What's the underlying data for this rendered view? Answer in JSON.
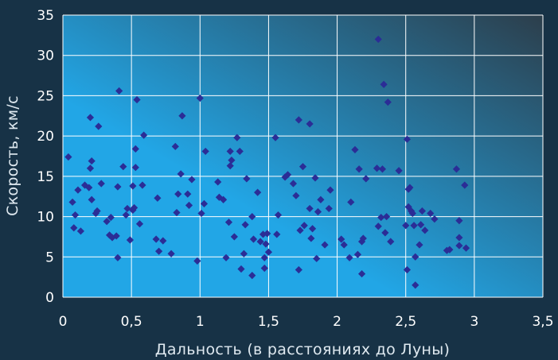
{
  "colors": {
    "page_background": "#173246",
    "plot_gradient_start": "#22a6e6",
    "plot_gradient_end": "#2c3e4b",
    "grid": "#ffffff",
    "marker": "#2b2d96",
    "text": "#ffffff"
  },
  "chart_data": {
    "type": "scatter",
    "title": "",
    "xlabel": "Дальность (в расстояниях до Луны)",
    "ylabel": "Скорость, км/с",
    "xlim": [
      0,
      3.5
    ],
    "ylim": [
      0,
      35
    ],
    "grid": true,
    "legend": "none",
    "marker": "diamond",
    "x_ticks": [
      "0",
      "0,5",
      "1",
      "1,5",
      "2",
      "2,5",
      "3",
      "3,5"
    ],
    "y_ticks": [
      "0",
      "5",
      "10",
      "15",
      "20",
      "25",
      "30",
      "35"
    ],
    "points": [
      [
        0.04,
        17.4
      ],
      [
        0.07,
        11.8
      ],
      [
        0.08,
        8.6
      ],
      [
        0.09,
        10.2
      ],
      [
        0.11,
        13.3
      ],
      [
        0.13,
        8.2
      ],
      [
        0.16,
        13.9
      ],
      [
        0.19,
        13.6
      ],
      [
        0.2,
        22.3
      ],
      [
        0.2,
        16.0
      ],
      [
        0.21,
        16.9
      ],
      [
        0.21,
        12.1
      ],
      [
        0.24,
        10.4
      ],
      [
        0.25,
        10.7
      ],
      [
        0.26,
        21.2
      ],
      [
        0.28,
        14.1
      ],
      [
        0.32,
        9.4
      ],
      [
        0.34,
        7.7
      ],
      [
        0.35,
        9.9
      ],
      [
        0.36,
        7.4
      ],
      [
        0.39,
        7.6
      ],
      [
        0.4,
        13.7
      ],
      [
        0.4,
        4.9
      ],
      [
        0.41,
        25.6
      ],
      [
        0.44,
        16.2
      ],
      [
        0.46,
        10.2
      ],
      [
        0.47,
        11.0
      ],
      [
        0.49,
        7.1
      ],
      [
        0.51,
        10.8
      ],
      [
        0.51,
        13.8
      ],
      [
        0.52,
        11.1
      ],
      [
        0.53,
        16.1
      ],
      [
        0.53,
        18.4
      ],
      [
        0.54,
        24.5
      ],
      [
        0.56,
        9.1
      ],
      [
        0.58,
        13.9
      ],
      [
        0.59,
        20.1
      ],
      [
        0.68,
        7.2
      ],
      [
        0.69,
        12.3
      ],
      [
        0.7,
        5.7
      ],
      [
        0.73,
        7.0
      ],
      [
        0.79,
        5.4
      ],
      [
        0.82,
        18.7
      ],
      [
        0.83,
        10.5
      ],
      [
        0.84,
        12.8
      ],
      [
        0.86,
        15.3
      ],
      [
        0.87,
        22.5
      ],
      [
        0.91,
        12.8
      ],
      [
        0.92,
        11.4
      ],
      [
        0.94,
        14.6
      ],
      [
        0.98,
        4.5
      ],
      [
        1.0,
        24.7
      ],
      [
        1.01,
        10.4
      ],
      [
        1.03,
        11.6
      ],
      [
        1.04,
        18.1
      ],
      [
        1.13,
        14.3
      ],
      [
        1.14,
        12.4
      ],
      [
        1.17,
        12.1
      ],
      [
        1.19,
        4.9
      ],
      [
        1.21,
        9.3
      ],
      [
        1.22,
        18.1
      ],
      [
        1.22,
        16.3
      ],
      [
        1.23,
        17.0
      ],
      [
        1.25,
        7.5
      ],
      [
        1.27,
        19.8
      ],
      [
        1.29,
        18.1
      ],
      [
        1.3,
        3.5
      ],
      [
        1.32,
        5.4
      ],
      [
        1.33,
        9.0
      ],
      [
        1.34,
        14.7
      ],
      [
        1.38,
        10.0
      ],
      [
        1.38,
        2.7
      ],
      [
        1.39,
        7.2
      ],
      [
        1.42,
        13.0
      ],
      [
        1.44,
        6.9
      ],
      [
        1.46,
        7.8
      ],
      [
        1.47,
        4.9
      ],
      [
        1.47,
        3.6
      ],
      [
        1.48,
        6.6
      ],
      [
        1.49,
        7.9
      ],
      [
        1.5,
        5.6
      ],
      [
        1.55,
        19.8
      ],
      [
        1.56,
        7.8
      ],
      [
        1.57,
        10.2
      ],
      [
        1.62,
        14.9
      ],
      [
        1.64,
        15.2
      ],
      [
        1.68,
        14.1
      ],
      [
        1.7,
        12.6
      ],
      [
        1.72,
        3.4
      ],
      [
        1.72,
        22.0
      ],
      [
        1.73,
        8.3
      ],
      [
        1.75,
        16.2
      ],
      [
        1.76,
        8.9
      ],
      [
        1.8,
        11.0
      ],
      [
        1.8,
        21.5
      ],
      [
        1.81,
        7.3
      ],
      [
        1.82,
        8.5
      ],
      [
        1.84,
        14.8
      ],
      [
        1.85,
        4.8
      ],
      [
        1.86,
        10.6
      ],
      [
        1.88,
        12.1
      ],
      [
        1.91,
        6.5
      ],
      [
        1.94,
        11.0
      ],
      [
        1.95,
        13.3
      ],
      [
        2.03,
        7.2
      ],
      [
        2.05,
        6.5
      ],
      [
        2.09,
        4.9
      ],
      [
        2.1,
        11.8
      ],
      [
        2.13,
        18.3
      ],
      [
        2.15,
        5.3
      ],
      [
        2.16,
        15.9
      ],
      [
        2.18,
        2.9
      ],
      [
        2.18,
        6.9
      ],
      [
        2.19,
        7.3
      ],
      [
        2.21,
        14.7
      ],
      [
        2.29,
        16.0
      ],
      [
        2.3,
        8.8
      ],
      [
        2.3,
        32.0
      ],
      [
        2.32,
        9.9
      ],
      [
        2.33,
        15.9
      ],
      [
        2.34,
        26.4
      ],
      [
        2.35,
        8.0
      ],
      [
        2.36,
        10.0
      ],
      [
        2.37,
        24.2
      ],
      [
        2.39,
        6.9
      ],
      [
        2.45,
        15.7
      ],
      [
        2.5,
        8.9
      ],
      [
        2.51,
        19.6
      ],
      [
        2.51,
        3.4
      ],
      [
        2.52,
        13.4
      ],
      [
        2.52,
        11.2
      ],
      [
        2.53,
        13.6
      ],
      [
        2.54,
        10.7
      ],
      [
        2.55,
        10.4
      ],
      [
        2.56,
        8.9
      ],
      [
        2.57,
        5.0
      ],
      [
        2.57,
        1.5
      ],
      [
        2.6,
        6.5
      ],
      [
        2.61,
        9.0
      ],
      [
        2.62,
        10.7
      ],
      [
        2.64,
        8.3
      ],
      [
        2.68,
        10.4
      ],
      [
        2.71,
        9.7
      ],
      [
        2.8,
        5.8
      ],
      [
        2.82,
        5.9
      ],
      [
        2.87,
        15.9
      ],
      [
        2.89,
        9.5
      ],
      [
        2.89,
        7.4
      ],
      [
        2.89,
        6.4
      ],
      [
        2.93,
        13.9
      ],
      [
        2.94,
        6.1
      ]
    ]
  }
}
